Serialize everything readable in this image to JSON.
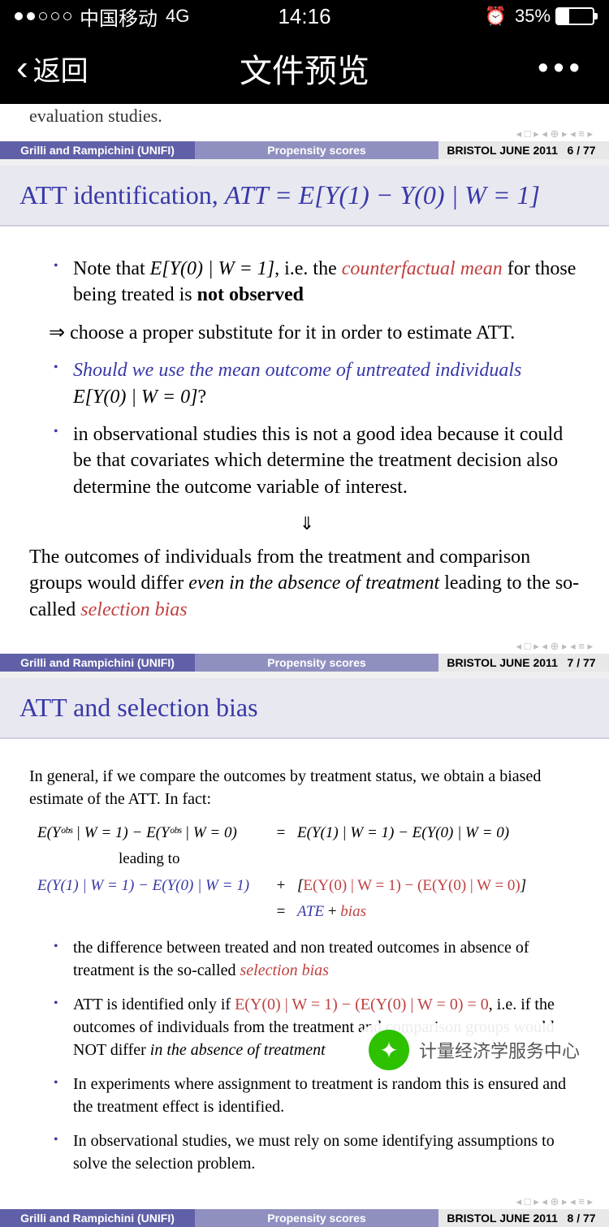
{
  "status": {
    "carrier": "中国移动",
    "network": "4G",
    "time": "14:16",
    "battery_pct": "35%",
    "battery_fill_pct": 35
  },
  "nav": {
    "back": "返回",
    "title": "文件预览",
    "more": "•••"
  },
  "footer": {
    "authors": "Grilli and Rampichini  (UNIFI)",
    "title": "Propensity scores",
    "venue_pre": "BRISTOL JUNE 2011",
    "p6": "6 / 77",
    "p7": "7 / 77",
    "p8": "8 / 77"
  },
  "slide0": {
    "truncated": "evaluation studies."
  },
  "slide1": {
    "title_pre": "ATT identification, ",
    "title_formula": "ATT = E[Y(1) − Y(0) | W = 1]",
    "bullet1_pre": "Note that ",
    "bullet1_formula": "E[Y(0) | W = 1]",
    "bullet1_mid": ", i.e. the ",
    "bullet1_red": "counterfactual mean",
    "bullet1_post1": " for those being treated is ",
    "bullet1_bold": "not observed",
    "arrow_text": "⇒ choose a proper substitute for it in order to estimate ATT.",
    "bullet2_blue": "Should we use the mean outcome of untreated individuals",
    "bullet2_formula": "E[Y(0) | W = 0]",
    "bullet2_q": "?",
    "bullet3": "in observational studies this is not a good idea because it could be that covariates which determine the treatment decision also determine the outcome variable of interest.",
    "down_arrow": "⇓",
    "para_pre": "The outcomes of individuals from the treatment and comparison groups would differ ",
    "para_ital": "even in the absence of treatment",
    "para_post": " leading to the so-called ",
    "para_red": "selection bias"
  },
  "slide2": {
    "title": "ATT and selection bias",
    "intro": "In general, if we compare the outcomes by treatment status, we obtain a biased estimate of the ATT. In fact:",
    "eq1_left": "E(Yᵒᵇˢ | W = 1) − E(Yᵒᵇˢ | W = 0)",
    "eq1_right": "E(Y(1) | W = 1) − E(Y(0) | W = 0)",
    "leading": "leading to",
    "eq2_left": "E(Y(1) | W = 1) − E(Y(0) | W = 1)",
    "eq2_right_red": "E(Y(0) | W = 1) − (E(Y(0) | W = 0)",
    "eq3_ate": "ATE",
    "eq3_plus": " + ",
    "eq3_bias": "bias",
    "b1_pre": "the difference between treated and non treated outcomes in absence of treatment is the so-called ",
    "b1_red": "selection bias",
    "b2_pre": "ATT is identified only if ",
    "b2_red": "E(Y(0) | W = 1) − (E(Y(0) | W = 0) = 0",
    "b2_post": ", i.e. if the outcomes of individuals from the treatment and comparison groups would NOT differ ",
    "b2_ital": "in the absence of treatment",
    "b3": "In experiments where assignment to treatment is random this is ensured and the treatment effect is identified.",
    "b4": "In observational studies, we must rely on some identifying assumptions to solve the selection problem."
  },
  "wechat": {
    "text": "计量经济学服务中心"
  }
}
